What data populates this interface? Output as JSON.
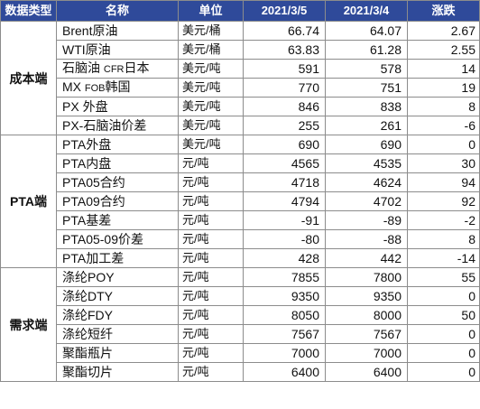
{
  "headers": [
    "数据类型",
    "名称",
    "单位",
    "2021/3/5",
    "2021/3/4",
    "涨跌"
  ],
  "groups": [
    {
      "category": "成本端",
      "rows": [
        {
          "name": "Brent原油",
          "unit": "美元/桶",
          "v1": "66.74",
          "v2": "64.07",
          "chg": "2.67"
        },
        {
          "name": "WTI原油",
          "unit": "美元/桶",
          "v1": "63.83",
          "v2": "61.28",
          "chg": "2.55"
        },
        {
          "name": "石脑油 CFR日本",
          "unit": "美元/吨",
          "v1": "591",
          "v2": "578",
          "chg": "14"
        },
        {
          "name": "MX FOB韩国",
          "unit": "美元/吨",
          "v1": "770",
          "v2": "751",
          "chg": "19"
        },
        {
          "name": "PX 外盘",
          "unit": "美元/吨",
          "v1": "846",
          "v2": "838",
          "chg": "8"
        },
        {
          "name": "PX-石脑油价差",
          "unit": "美元/吨",
          "v1": "255",
          "v2": "261",
          "chg": "-6"
        }
      ]
    },
    {
      "category": "PTA端",
      "rows": [
        {
          "name": "PTA外盘",
          "unit": "美元/吨",
          "v1": "690",
          "v2": "690",
          "chg": "0"
        },
        {
          "name": "PTA内盘",
          "unit": "元/吨",
          "v1": "4565",
          "v2": "4535",
          "chg": "30"
        },
        {
          "name": "PTA05合约",
          "unit": "元/吨",
          "v1": "4718",
          "v2": "4624",
          "chg": "94"
        },
        {
          "name": "PTA09合约",
          "unit": "元/吨",
          "v1": "4794",
          "v2": "4702",
          "chg": "92"
        },
        {
          "name": "PTA基差",
          "unit": "元/吨",
          "v1": "-91",
          "v2": "-89",
          "chg": "-2"
        },
        {
          "name": "PTA05-09价差",
          "unit": "元/吨",
          "v1": "-80",
          "v2": "-88",
          "chg": "8"
        },
        {
          "name": "PTA加工差",
          "unit": "元/吨",
          "v1": "428",
          "v2": "442",
          "chg": "-14"
        }
      ]
    },
    {
      "category": "需求端",
      "rows": [
        {
          "name": "涤纶POY",
          "unit": "元/吨",
          "v1": "7855",
          "v2": "7800",
          "chg": "55"
        },
        {
          "name": "涤纶DTY",
          "unit": "元/吨",
          "v1": "9350",
          "v2": "9350",
          "chg": "0"
        },
        {
          "name": "涤纶FDY",
          "unit": "元/吨",
          "v1": "8050",
          "v2": "8000",
          "chg": "50"
        },
        {
          "name": "涤纶短纤",
          "unit": "元/吨",
          "v1": "7567",
          "v2": "7567",
          "chg": "0"
        },
        {
          "name": "聚酯瓶片",
          "unit": "元/吨",
          "v1": "7000",
          "v2": "7000",
          "chg": "0"
        },
        {
          "name": "聚酯切片",
          "unit": "元/吨",
          "v1": "6400",
          "v2": "6400",
          "chg": "0"
        }
      ]
    }
  ]
}
